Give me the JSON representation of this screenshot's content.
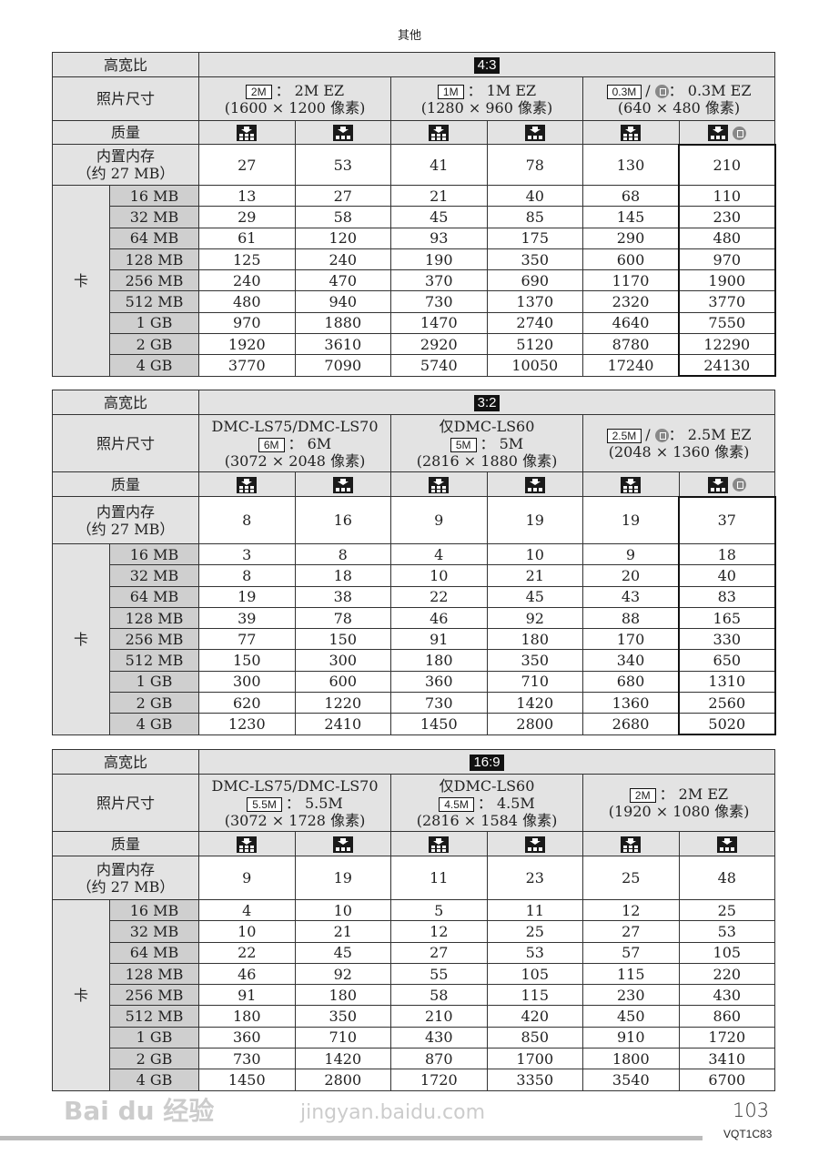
{
  "header": "其他",
  "labels": {
    "aspect": "高宽比",
    "size": "照片尺寸",
    "quality": "质量",
    "builtin_line1": "内置内存",
    "builtin_line2": "（约 27 MB）",
    "card": "卡"
  },
  "card_sizes": [
    "16 MB",
    "32 MB",
    "64 MB",
    "128 MB",
    "256 MB",
    "512 MB",
    "1 GB",
    "2 GB",
    "4 GB"
  ],
  "quality_icons": [
    "fine-icon",
    "standard-icon",
    "fine-icon",
    "standard-icon",
    "fine-icon",
    "standard-icon"
  ],
  "tables": [
    {
      "aspect": "4:3",
      "highlight_last": true,
      "last_quality_extra_icon": "low-res-mode-icon",
      "sizes": [
        {
          "model": "",
          "badge": "2M",
          "slash_icon": false,
          "text": "： 2M EZ",
          "pixels": "(1600 × 1200 像素)"
        },
        {
          "model": "",
          "badge": "1M",
          "slash_icon": false,
          "text": "： 1M EZ",
          "pixels": "(1280 × 960 像素)"
        },
        {
          "model": "",
          "badge": "0.3M",
          "slash_icon": true,
          "text": "： 0.3M EZ",
          "pixels": "(640 × 480 像素)"
        }
      ],
      "builtin": [
        "27",
        "53",
        "41",
        "78",
        "130",
        "210"
      ],
      "rows": [
        [
          "13",
          "27",
          "21",
          "40",
          "68",
          "110"
        ],
        [
          "29",
          "58",
          "45",
          "85",
          "145",
          "230"
        ],
        [
          "61",
          "120",
          "93",
          "175",
          "290",
          "480"
        ],
        [
          "125",
          "240",
          "190",
          "350",
          "600",
          "970"
        ],
        [
          "240",
          "470",
          "370",
          "690",
          "1170",
          "1900"
        ],
        [
          "480",
          "940",
          "730",
          "1370",
          "2320",
          "3770"
        ],
        [
          "970",
          "1880",
          "1470",
          "2740",
          "4640",
          "7550"
        ],
        [
          "1920",
          "3610",
          "2920",
          "5120",
          "8780",
          "12290"
        ],
        [
          "3770",
          "7090",
          "5740",
          "10050",
          "17240",
          "24130"
        ]
      ]
    },
    {
      "aspect": "3:2",
      "highlight_last": true,
      "last_quality_extra_icon": "low-res-mode-icon",
      "sizes": [
        {
          "model": "DMC-LS75/DMC-LS70",
          "badge": "6M",
          "slash_icon": false,
          "text": "： 6M",
          "pixels": "(3072 × 2048 像素)"
        },
        {
          "model": "仅DMC-LS60",
          "badge": "5M",
          "slash_icon": false,
          "text": "： 5M",
          "pixels": "(2816 × 1880 像素)"
        },
        {
          "model": "",
          "badge": "2.5M",
          "slash_icon": true,
          "text": "： 2.5M EZ",
          "pixels": "(2048 × 1360 像素)"
        }
      ],
      "builtin": [
        "8",
        "16",
        "9",
        "19",
        "19",
        "37"
      ],
      "rows": [
        [
          "3",
          "8",
          "4",
          "10",
          "9",
          "18"
        ],
        [
          "8",
          "18",
          "10",
          "21",
          "20",
          "40"
        ],
        [
          "19",
          "38",
          "22",
          "45",
          "43",
          "83"
        ],
        [
          "39",
          "78",
          "46",
          "92",
          "88",
          "165"
        ],
        [
          "77",
          "150",
          "91",
          "180",
          "170",
          "330"
        ],
        [
          "150",
          "300",
          "180",
          "350",
          "340",
          "650"
        ],
        [
          "300",
          "600",
          "360",
          "710",
          "680",
          "1310"
        ],
        [
          "620",
          "1220",
          "730",
          "1420",
          "1360",
          "2560"
        ],
        [
          "1230",
          "2410",
          "1450",
          "2800",
          "2680",
          "5020"
        ]
      ]
    },
    {
      "aspect": "16:9",
      "highlight_last": false,
      "last_quality_extra_icon": "",
      "sizes": [
        {
          "model": "DMC-LS75/DMC-LS70",
          "badge": "5.5M",
          "slash_icon": false,
          "text": "： 5.5M",
          "pixels": "(3072 × 1728 像素)"
        },
        {
          "model": "仅DMC-LS60",
          "badge": "4.5M",
          "slash_icon": false,
          "text": "： 4.5M",
          "pixels": "(2816 × 1584 像素)"
        },
        {
          "model": "",
          "badge": "2M",
          "slash_icon": false,
          "text": "： 2M EZ",
          "pixels": "(1920 × 1080 像素)"
        }
      ],
      "builtin": [
        "9",
        "19",
        "11",
        "23",
        "25",
        "48"
      ],
      "rows": [
        [
          "4",
          "10",
          "5",
          "11",
          "12",
          "25"
        ],
        [
          "10",
          "21",
          "12",
          "25",
          "27",
          "53"
        ],
        [
          "22",
          "45",
          "27",
          "53",
          "57",
          "105"
        ],
        [
          "46",
          "92",
          "55",
          "105",
          "115",
          "220"
        ],
        [
          "91",
          "180",
          "58",
          "115",
          "230",
          "430"
        ],
        [
          "180",
          "350",
          "210",
          "420",
          "450",
          "860"
        ],
        [
          "360",
          "710",
          "430",
          "850",
          "910",
          "1720"
        ],
        [
          "730",
          "1420",
          "870",
          "1700",
          "1800",
          "3410"
        ],
        [
          "1450",
          "2800",
          "1720",
          "3350",
          "3540",
          "6700"
        ]
      ]
    }
  ],
  "footer": {
    "page_number": "103",
    "code": "VQT1C83"
  },
  "watermark": {
    "logo": "Bai du 经验",
    "url": "jingyan.baidu.com"
  }
}
